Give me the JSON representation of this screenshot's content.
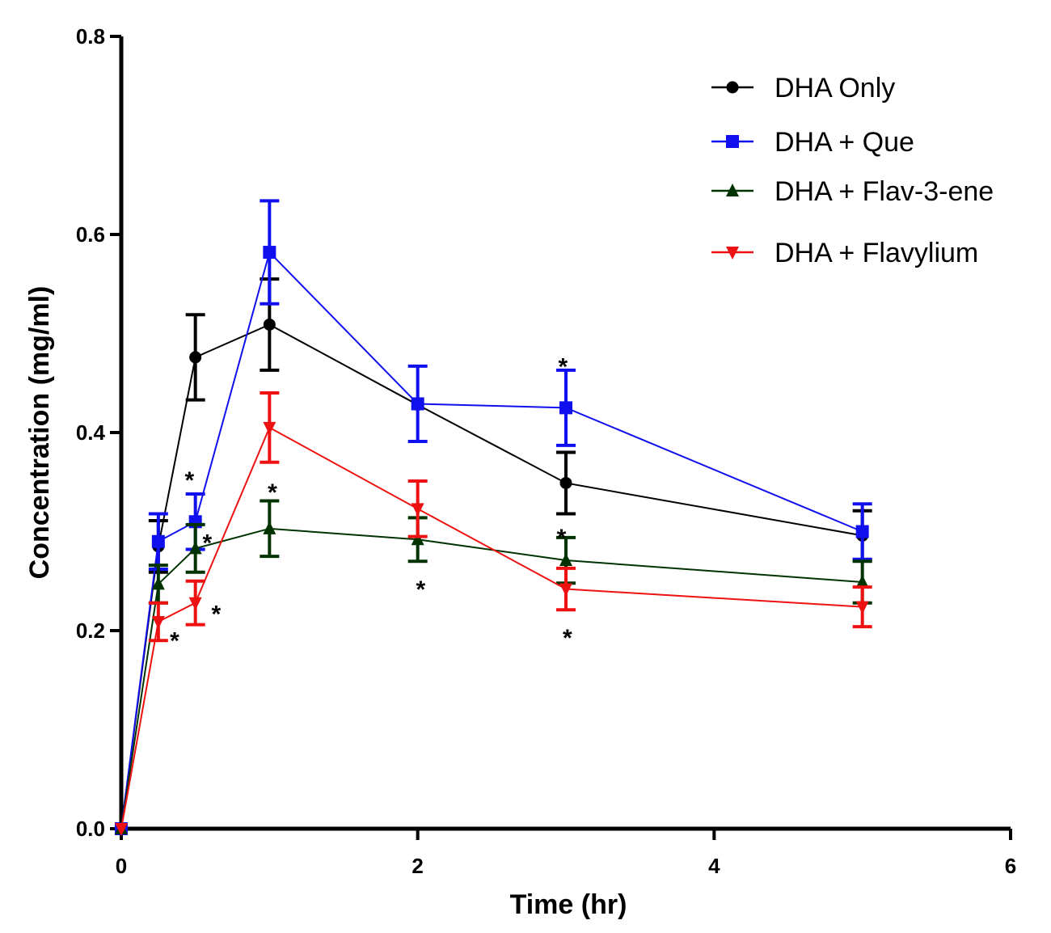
{
  "chart_data": {
    "type": "line",
    "xlabel": "Time (hr)",
    "ylabel": "Concentration (mg/ml)",
    "xlim": [
      0,
      6
    ],
    "ylim": [
      0,
      0.8
    ],
    "xticks": [
      "0",
      "2",
      "4",
      "6"
    ],
    "yticks": [
      "0.0",
      "0.2",
      "0.4",
      "0.6",
      "0.8"
    ],
    "grid": false,
    "legend_position": "top-right",
    "series": [
      {
        "name": "DHA Only",
        "color": "#000000",
        "marker": "circle",
        "x": [
          0,
          0.25,
          0.5,
          1,
          2,
          3,
          5
        ],
        "y": [
          0.0,
          0.285,
          0.476,
          0.509,
          0.428,
          0.349,
          0.296
        ],
        "err": [
          0,
          0.026,
          0.043,
          0.046,
          0.0,
          0.031,
          0.025
        ]
      },
      {
        "name": "DHA + Que",
        "color": "#1010ee",
        "marker": "square",
        "x": [
          0,
          0.25,
          0.5,
          1,
          2,
          3,
          5
        ],
        "y": [
          0.0,
          0.29,
          0.31,
          0.582,
          0.429,
          0.425,
          0.3
        ],
        "err": [
          0,
          0.028,
          0.028,
          0.052,
          0.038,
          0.038,
          0.028
        ]
      },
      {
        "name": "DHA + Flav-3-ene",
        "color": "#003300",
        "marker": "triangle-up",
        "x": [
          0,
          0.25,
          0.5,
          1,
          2,
          3,
          5
        ],
        "y": [
          0.0,
          0.247,
          0.283,
          0.303,
          0.292,
          0.271,
          0.249
        ],
        "err": [
          0,
          0.019,
          0.024,
          0.028,
          0.022,
          0.023,
          0.021
        ]
      },
      {
        "name": "DHA + Flavylium",
        "color": "#ee1111",
        "marker": "triangle-down",
        "x": [
          0,
          0.25,
          0.5,
          1,
          2,
          3,
          5
        ],
        "y": [
          0.0,
          0.209,
          0.228,
          0.405,
          0.323,
          0.242,
          0.224
        ],
        "err": [
          0,
          0.019,
          0.022,
          0.035,
          0.028,
          0.021,
          0.02
        ]
      }
    ],
    "annotations": [
      {
        "text": "*",
        "x": 0.46,
        "y": 0.355
      },
      {
        "text": "*",
        "x": 0.58,
        "y": 0.292
      },
      {
        "text": "*",
        "x": 0.36,
        "y": 0.193
      },
      {
        "text": "*",
        "x": 0.64,
        "y": 0.22
      },
      {
        "text": "*",
        "x": 1.02,
        "y": 0.343
      },
      {
        "text": "*",
        "x": 2.02,
        "y": 0.245
      },
      {
        "text": "*",
        "x": 2.98,
        "y": 0.47
      },
      {
        "text": "*",
        "x": 2.97,
        "y": 0.297
      },
      {
        "text": "*",
        "x": 3.01,
        "y": 0.196
      }
    ]
  }
}
